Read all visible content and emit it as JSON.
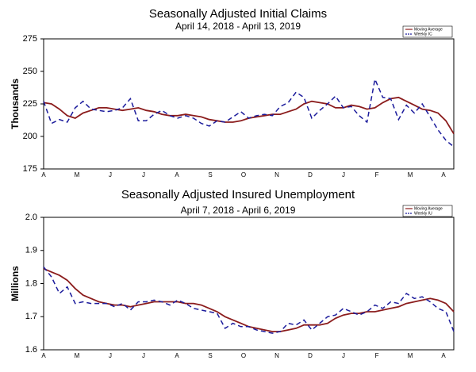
{
  "chart_data": [
    {
      "type": "line",
      "title": "Seasonally Adjusted Initial Claims",
      "subtitle": "April 14, 2018 - April 13, 2019",
      "y_label": "Thousands",
      "months": [
        "A",
        "M",
        "J",
        "J",
        "A",
        "S",
        "O",
        "N",
        "D",
        "J",
        "F",
        "M",
        "A"
      ],
      "ylim": [
        175,
        275
      ],
      "yticks": [
        175,
        200,
        225,
        250,
        275
      ],
      "legend": "upper right",
      "series": [
        {
          "name": "Moving Average",
          "color": "#8b1c1c",
          "dashed": false,
          "values": [
            226,
            225,
            221,
            216,
            214,
            218,
            220,
            222,
            222,
            221,
            220,
            221,
            222,
            220,
            219,
            217,
            216,
            216,
            217,
            216,
            215,
            213,
            212,
            211,
            211,
            212,
            214,
            215,
            216,
            217,
            217,
            219,
            221,
            225,
            227,
            226,
            225,
            222,
            222,
            224,
            223,
            221,
            222,
            226,
            229,
            230,
            227,
            224,
            221,
            220,
            218,
            212,
            202
          ]
        },
        {
          "name": "Weekly IC",
          "color": "#1c1c9c",
          "dashed": true,
          "values": [
            227,
            210,
            213,
            211,
            222,
            227,
            221,
            220,
            219,
            220,
            222,
            229,
            212,
            212,
            217,
            220,
            216,
            214,
            216,
            214,
            210,
            208,
            212,
            211,
            215,
            219,
            214,
            216,
            217,
            216,
            223,
            226,
            234,
            230,
            214,
            220,
            225,
            231,
            222,
            223,
            216,
            211,
            244,
            230,
            229,
            213,
            224,
            218,
            225,
            215,
            205,
            197,
            192
          ]
        }
      ]
    },
    {
      "type": "line",
      "title": "Seasonally Adjusted Insured Unemployment",
      "subtitle": "April 7, 2018 - April 6, 2019",
      "y_label": "Millions",
      "months": [
        "A",
        "M",
        "J",
        "J",
        "A",
        "S",
        "O",
        "N",
        "D",
        "J",
        "F",
        "M",
        "A"
      ],
      "ylim": [
        1.6,
        2.0
      ],
      "yticks": [
        1.6,
        1.7,
        1.8,
        1.9,
        {
          "value": 2.0,
          "label": "2.0"
        }
      ],
      "legend": "upper right",
      "series": [
        {
          "name": "Moving Average",
          "color": "#8b1c1c",
          "dashed": false,
          "values": [
            1.845,
            1.835,
            1.825,
            1.81,
            1.785,
            1.765,
            1.755,
            1.745,
            1.74,
            1.735,
            1.735,
            1.73,
            1.735,
            1.74,
            1.745,
            1.745,
            1.745,
            1.745,
            1.74,
            1.74,
            1.735,
            1.725,
            1.715,
            1.7,
            1.69,
            1.68,
            1.67,
            1.665,
            1.66,
            1.655,
            1.655,
            1.66,
            1.665,
            1.675,
            1.675,
            1.675,
            1.68,
            1.695,
            1.705,
            1.71,
            1.71,
            1.715,
            1.715,
            1.72,
            1.725,
            1.73,
            1.74,
            1.745,
            1.75,
            1.755,
            1.75,
            1.74,
            1.715
          ]
        },
        {
          "name": "Weekly IU",
          "color": "#1c1c9c",
          "dashed": true,
          "values": [
            1.85,
            1.82,
            1.77,
            1.79,
            1.74,
            1.745,
            1.74,
            1.74,
            1.74,
            1.73,
            1.74,
            1.72,
            1.745,
            1.745,
            1.75,
            1.745,
            1.735,
            1.75,
            1.74,
            1.725,
            1.72,
            1.715,
            1.71,
            1.665,
            1.68,
            1.67,
            1.67,
            1.66,
            1.655,
            1.65,
            1.655,
            1.68,
            1.675,
            1.69,
            1.66,
            1.68,
            1.7,
            1.705,
            1.725,
            1.715,
            1.705,
            1.715,
            1.735,
            1.725,
            1.745,
            1.74,
            1.77,
            1.755,
            1.76,
            1.745,
            1.725,
            1.715,
            1.655
          ]
        }
      ]
    }
  ]
}
